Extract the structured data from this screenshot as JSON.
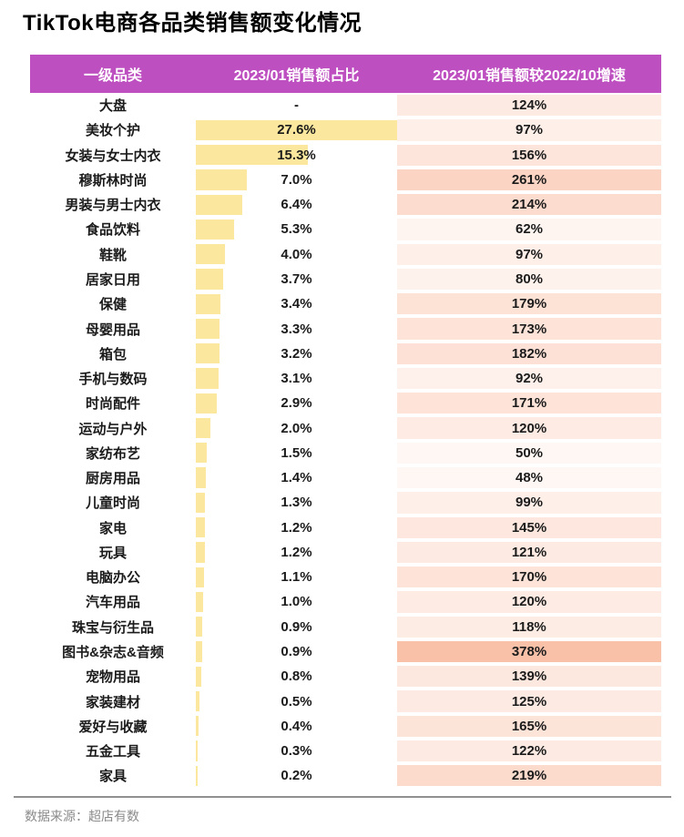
{
  "page": {
    "title": "TikTok电商各品类销售额变化情况",
    "source": "数据来源：超店有数"
  },
  "table": {
    "columns": [
      "一级品类",
      "2023/01销售额占比",
      "2023/01销售额较2022/10增速"
    ],
    "null_share_display": "-"
  },
  "colors": {
    "header_bg": "#BE4FC0",
    "bar": "#FBE79E",
    "heat_max": "#FAC1A9",
    "heat_min": "#FFFFFF",
    "text": "#1b1b1b",
    "footer_text": "#8a8a8a",
    "divider": "#909090"
  },
  "chart_data": {
    "type": "table",
    "title": "TikTok电商各品类销售额变化情况",
    "source": "数据来源：超店有数",
    "columns": [
      "一级品类",
      "2023/01销售额占比",
      "2023/01销售额较2022/10增速"
    ],
    "categories": [
      "大盘",
      "美妆个护",
      "女装与女士内衣",
      "穆斯林时尚",
      "男装与男士内衣",
      "食品饮料",
      "鞋靴",
      "居家日用",
      "保健",
      "母婴用品",
      "箱包",
      "手机与数码",
      "时尚配件",
      "运动与户外",
      "家纺布艺",
      "厨房用品",
      "儿童时尚",
      "家电",
      "玩具",
      "电脑办公",
      "汽车用品",
      "珠宝与衍生品",
      "图书&杂志&音频",
      "宠物用品",
      "家装建材",
      "爱好与收藏",
      "五金工具",
      "家具"
    ],
    "series": [
      {
        "name": "2023/01销售额占比(%)",
        "values": [
          null,
          27.6,
          15.3,
          7.0,
          6.4,
          5.3,
          4.0,
          3.7,
          3.4,
          3.3,
          3.2,
          3.1,
          2.9,
          2.0,
          1.5,
          1.4,
          1.3,
          1.2,
          1.2,
          1.1,
          1.0,
          0.9,
          0.9,
          0.8,
          0.5,
          0.4,
          0.3,
          0.2
        ]
      },
      {
        "name": "2023/01销售额较2022/10增速(%)",
        "values": [
          124,
          97,
          156,
          261,
          214,
          62,
          97,
          80,
          179,
          173,
          182,
          92,
          171,
          120,
          50,
          48,
          99,
          145,
          121,
          170,
          120,
          118,
          378,
          139,
          125,
          165,
          122,
          219
        ]
      }
    ],
    "share_axis_max": 27.6,
    "growth_axis_max": 378,
    "legend_position": "none",
    "grid": false
  }
}
